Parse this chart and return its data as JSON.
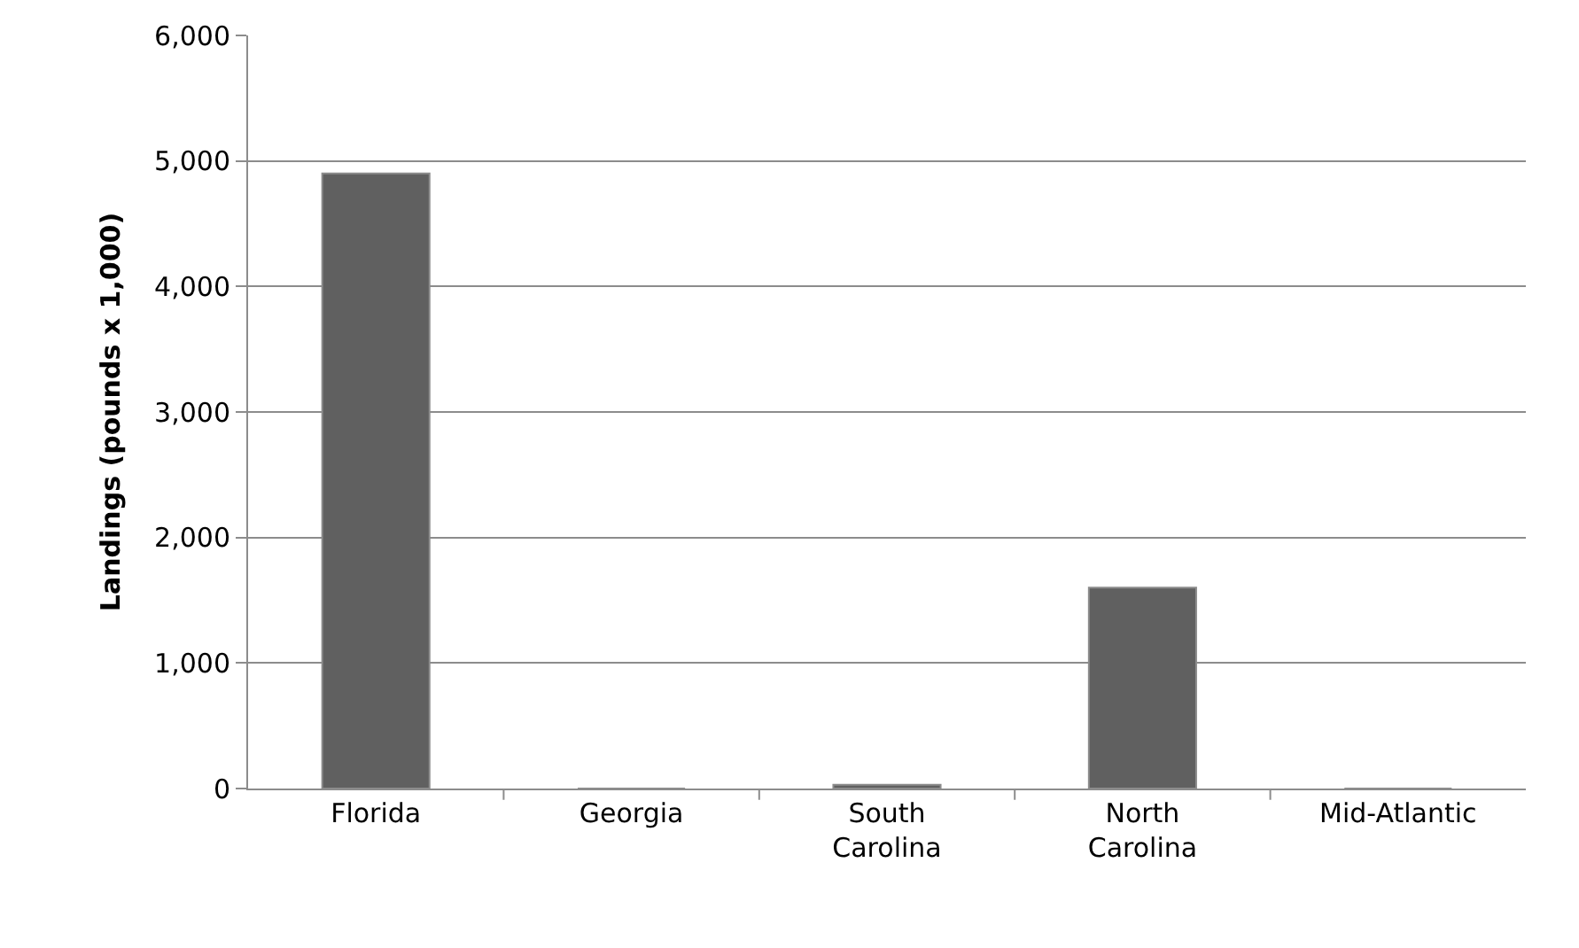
{
  "chart_data": {
    "type": "bar",
    "ylabel": "Landings (pounds x 1,000)",
    "categories": [
      "Florida",
      "Georgia",
      "South\nCarolina",
      "North\nCarolina",
      "Mid-Atlantic"
    ],
    "values": [
      4900,
      0,
      30,
      1600,
      0
    ],
    "color": "#606060",
    "ylim": [
      0,
      6000
    ],
    "yticks": [
      {
        "value": 0,
        "label": "0"
      },
      {
        "value": 1000,
        "label": "1,000"
      },
      {
        "value": 2000,
        "label": "2,000"
      },
      {
        "value": 3000,
        "label": "3,000"
      },
      {
        "value": 4000,
        "label": "4,000"
      },
      {
        "value": 5000,
        "label": "5,000"
      },
      {
        "value": 6000,
        "label": "6,000"
      }
    ],
    "grid": "y"
  }
}
